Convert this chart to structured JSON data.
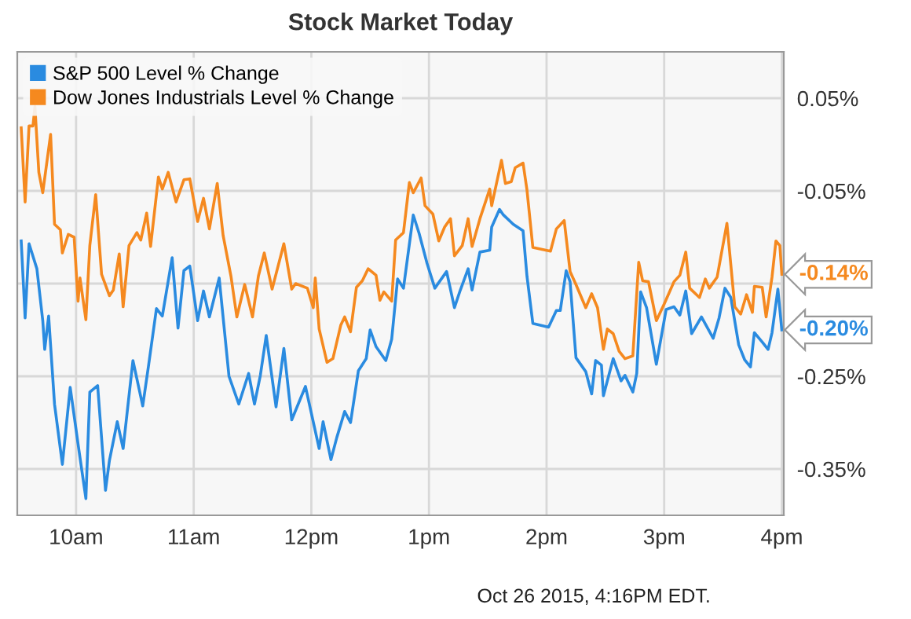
{
  "chart_data": {
    "type": "line",
    "title": "Stock Market Today",
    "xlim": [
      "2015-10-26T09:30",
      "2015-10-26T16:01"
    ],
    "xticks": [
      {
        "value": "2015-10-26T10:00",
        "label": "10am"
      },
      {
        "value": "2015-10-26T11:00",
        "label": "11am"
      },
      {
        "value": "2015-10-26T12:00",
        "label": "12pm"
      },
      {
        "value": "2015-10-26T13:00",
        "label": "1pm"
      },
      {
        "value": "2015-10-26T14:00",
        "label": "2pm"
      },
      {
        "value": "2015-10-26T15:00",
        "label": "3pm"
      },
      {
        "value": "2015-10-26T16:00",
        "label": "4pm"
      }
    ],
    "ylim": [
      -0.4,
      0.1
    ],
    "yticks": [
      {
        "value": 0.05,
        "label": "0.05%"
      },
      {
        "value": -0.05,
        "label": "-0.05%"
      },
      {
        "value": -0.15,
        "label": null
      },
      {
        "value": -0.25,
        "label": "-0.25%"
      },
      {
        "value": -0.35,
        "label": "-0.35%"
      }
    ],
    "grid": true,
    "legend": "top left",
    "series": [
      {
        "name": "S&P 500 Level % Change",
        "color": "#2a8be0",
        "x": [
          "2015-10-26T09:32",
          "2015-10-26T09:34",
          "2015-10-26T09:36",
          "2015-10-26T09:40",
          "2015-10-26T09:43",
          "2015-10-26T09:44",
          "2015-10-26T09:46",
          "2015-10-26T09:49",
          "2015-10-26T09:53",
          "2015-10-26T09:57",
          "2015-10-26T10:01",
          "2015-10-26T10:05",
          "2015-10-26T10:07",
          "2015-10-26T10:11",
          "2015-10-26T10:15",
          "2015-10-26T10:17",
          "2015-10-26T10:21",
          "2015-10-26T10:24",
          "2015-10-26T10:29",
          "2015-10-26T10:34",
          "2015-10-26T10:37",
          "2015-10-26T10:41",
          "2015-10-26T10:44",
          "2015-10-26T10:49",
          "2015-10-26T10:52",
          "2015-10-26T10:55",
          "2015-10-26T10:58",
          "2015-10-26T11:02",
          "2015-10-26T11:05",
          "2015-10-26T11:08",
          "2015-10-26T11:13",
          "2015-10-26T11:18",
          "2015-10-26T11:23",
          "2015-10-26T11:28",
          "2015-10-26T11:31",
          "2015-10-26T11:34",
          "2015-10-26T11:37",
          "2015-10-26T11:42",
          "2015-10-26T11:46",
          "2015-10-26T11:50",
          "2015-10-26T11:57",
          "2015-10-26T12:04",
          "2015-10-26T12:06",
          "2015-10-26T12:10",
          "2015-10-26T12:13",
          "2015-10-26T12:17",
          "2015-10-26T12:20",
          "2015-10-26T12:24",
          "2015-10-26T12:28",
          "2015-10-26T12:30",
          "2015-10-26T12:33",
          "2015-10-26T12:38",
          "2015-10-26T12:41",
          "2015-10-26T12:44",
          "2015-10-26T12:47",
          "2015-10-26T12:52",
          "2015-10-26T12:55",
          "2015-10-26T12:59",
          "2015-10-26T13:03",
          "2015-10-26T13:09",
          "2015-10-26T13:13",
          "2015-10-26T13:16",
          "2015-10-26T13:20",
          "2015-10-26T13:22",
          "2015-10-26T13:26",
          "2015-10-26T13:31",
          "2015-10-26T13:32",
          "2015-10-26T13:36",
          "2015-10-26T13:38",
          "2015-10-26T13:43",
          "2015-10-26T13:48",
          "2015-10-26T13:50",
          "2015-10-26T13:53",
          "2015-10-26T14:01",
          "2015-10-26T14:05",
          "2015-10-26T14:07",
          "2015-10-26T14:10",
          "2015-10-26T14:12",
          "2015-10-26T14:15",
          "2015-10-26T14:20",
          "2015-10-26T14:23",
          "2015-10-26T14:25",
          "2015-10-26T14:28",
          "2015-10-26T14:29",
          "2015-10-26T14:34",
          "2015-10-26T14:38",
          "2015-10-26T14:40",
          "2015-10-26T14:44",
          "2015-10-26T14:46",
          "2015-10-26T14:48",
          "2015-10-26T14:51",
          "2015-10-26T14:56",
          "2015-10-26T15:01",
          "2015-10-26T15:05",
          "2015-10-26T15:08",
          "2015-10-26T15:11",
          "2015-10-26T15:14",
          "2015-10-26T15:19",
          "2015-10-26T15:25",
          "2015-10-26T15:28",
          "2015-10-26T15:31",
          "2015-10-26T15:34",
          "2015-10-26T15:38",
          "2015-10-26T15:41",
          "2015-10-26T15:44",
          "2015-10-26T15:46",
          "2015-10-26T15:50",
          "2015-10-26T15:53",
          "2015-10-26T15:55",
          "2015-10-26T15:58",
          "2015-10-26T16:00"
        ],
        "values": [
          -0.104,
          -0.187,
          -0.107,
          -0.134,
          -0.19,
          -0.221,
          -0.185,
          -0.28,
          -0.345,
          -0.262,
          -0.323,
          -0.382,
          -0.267,
          -0.26,
          -0.373,
          -0.341,
          -0.299,
          -0.328,
          -0.233,
          -0.282,
          -0.238,
          -0.177,
          -0.185,
          -0.122,
          -0.198,
          -0.136,
          -0.131,
          -0.19,
          -0.158,
          -0.186,
          -0.144,
          -0.25,
          -0.28,
          -0.247,
          -0.28,
          -0.249,
          -0.206,
          -0.283,
          -0.22,
          -0.297,
          -0.261,
          -0.328,
          -0.299,
          -0.34,
          -0.316,
          -0.288,
          -0.3,
          -0.244,
          -0.231,
          -0.2,
          -0.218,
          -0.233,
          -0.21,
          -0.145,
          -0.155,
          -0.076,
          -0.096,
          -0.128,
          -0.155,
          -0.137,
          -0.176,
          -0.157,
          -0.134,
          -0.157,
          -0.116,
          -0.114,
          -0.089,
          -0.07,
          -0.076,
          -0.086,
          -0.093,
          -0.142,
          -0.193,
          -0.197,
          -0.179,
          -0.179,
          -0.136,
          -0.148,
          -0.23,
          -0.245,
          -0.269,
          -0.233,
          -0.238,
          -0.271,
          -0.231,
          -0.255,
          -0.249,
          -0.267,
          -0.247,
          -0.159,
          -0.176,
          -0.237,
          -0.178,
          -0.175,
          -0.184,
          -0.158,
          -0.204,
          -0.186,
          -0.209,
          -0.187,
          -0.155,
          -0.165,
          -0.216,
          -0.232,
          -0.24,
          -0.203,
          -0.213,
          -0.221,
          -0.203,
          -0.156,
          -0.2
        ]
      },
      {
        "name": "Dow Jones Industrials Level % Change",
        "color": "#f5891f",
        "x": [
          "2015-10-26T09:32",
          "2015-10-26T09:34",
          "2015-10-26T09:36",
          "2015-10-26T09:38",
          "2015-10-26T09:39",
          "2015-10-26T09:41",
          "2015-10-26T09:43",
          "2015-10-26T09:47",
          "2015-10-26T09:49",
          "2015-10-26T09:52",
          "2015-10-26T09:53",
          "2015-10-26T09:56",
          "2015-10-26T09:59",
          "2015-10-26T10:01",
          "2015-10-26T10:02",
          "2015-10-26T10:05",
          "2015-10-26T10:07",
          "2015-10-26T10:10",
          "2015-10-26T10:13",
          "2015-10-26T10:17",
          "2015-10-26T10:19",
          "2015-10-26T10:22",
          "2015-10-26T10:24",
          "2015-10-26T10:27",
          "2015-10-26T10:31",
          "2015-10-26T10:33",
          "2015-10-26T10:36",
          "2015-10-26T10:38",
          "2015-10-26T10:42",
          "2015-10-26T10:44",
          "2015-10-26T10:47",
          "2015-10-26T10:51",
          "2015-10-26T10:55",
          "2015-10-26T10:58",
          "2015-10-26T11:02",
          "2015-10-26T11:05",
          "2015-10-26T11:08",
          "2015-10-26T11:12",
          "2015-10-26T11:15",
          "2015-10-26T11:19",
          "2015-10-26T11:22",
          "2015-10-26T11:26",
          "2015-10-26T11:30",
          "2015-10-26T11:33",
          "2015-10-26T11:36",
          "2015-10-26T11:40",
          "2015-10-26T11:46",
          "2015-10-26T11:50",
          "2015-10-26T11:52",
          "2015-10-26T11:58",
          "2015-10-26T12:01",
          "2015-10-26T12:02",
          "2015-10-26T12:04",
          "2015-10-26T12:08",
          "2015-10-26T12:11",
          "2015-10-26T12:15",
          "2015-10-26T12:17",
          "2015-10-26T12:20",
          "2015-10-26T12:23",
          "2015-10-26T12:26",
          "2015-10-26T12:29",
          "2015-10-26T12:33",
          "2015-10-26T12:35",
          "2015-10-26T12:37",
          "2015-10-26T12:41",
          "2015-10-26T12:43",
          "2015-10-26T12:47",
          "2015-10-26T12:50",
          "2015-10-26T12:52",
          "2015-10-26T12:56",
          "2015-10-26T12:58",
          "2015-10-26T13:02",
          "2015-10-26T13:05",
          "2015-10-26T13:08",
          "2015-10-26T13:11",
          "2015-10-26T13:13",
          "2015-10-26T13:17",
          "2015-10-26T13:20",
          "2015-10-26T13:22",
          "2015-10-26T13:26",
          "2015-10-26T13:31",
          "2015-10-26T13:32",
          "2015-10-26T13:37",
          "2015-10-26T13:39",
          "2015-10-26T13:42",
          "2015-10-26T13:44",
          "2015-10-26T13:48",
          "2015-10-26T13:50",
          "2015-10-26T13:53",
          "2015-10-26T14:02",
          "2015-10-26T14:05",
          "2015-10-26T14:09",
          "2015-10-26T14:12",
          "2015-10-26T14:15",
          "2015-10-26T14:20",
          "2015-10-26T14:23",
          "2015-10-26T14:26",
          "2015-10-26T14:29",
          "2015-10-26T14:31",
          "2015-10-26T14:34",
          "2015-10-26T14:37",
          "2015-10-26T14:40",
          "2015-10-26T14:44",
          "2015-10-26T14:47",
          "2015-10-26T14:49",
          "2015-10-26T14:52",
          "2015-10-26T14:56",
          "2015-10-26T15:00",
          "2015-10-26T15:05",
          "2015-10-26T15:08",
          "2015-10-26T15:11",
          "2015-10-26T15:13",
          "2015-10-26T15:18",
          "2015-10-26T15:21",
          "2015-10-26T15:23",
          "2015-10-26T15:27",
          "2015-10-26T15:32",
          "2015-10-26T15:36",
          "2015-10-26T15:39",
          "2015-10-26T15:42",
          "2015-10-26T15:45",
          "2015-10-26T15:46",
          "2015-10-26T15:50",
          "2015-10-26T15:52",
          "2015-10-26T15:55",
          "2015-10-26T15:57",
          "2015-10-26T15:59",
          "2015-10-26T16:00"
        ],
        "values": [
          0.018,
          -0.062,
          0.02,
          0.02,
          0.041,
          -0.03,
          -0.052,
          0.011,
          -0.086,
          -0.092,
          -0.117,
          -0.097,
          -0.1,
          -0.169,
          -0.144,
          -0.189,
          -0.109,
          -0.054,
          -0.14,
          -0.163,
          -0.157,
          -0.118,
          -0.175,
          -0.109,
          -0.095,
          -0.103,
          -0.074,
          -0.11,
          -0.035,
          -0.048,
          -0.03,
          -0.062,
          -0.038,
          -0.037,
          -0.083,
          -0.058,
          -0.091,
          -0.042,
          -0.098,
          -0.142,
          -0.186,
          -0.151,
          -0.186,
          -0.142,
          -0.117,
          -0.156,
          -0.107,
          -0.156,
          -0.15,
          -0.155,
          -0.176,
          -0.144,
          -0.199,
          -0.235,
          -0.231,
          -0.195,
          -0.186,
          -0.202,
          -0.154,
          -0.147,
          -0.134,
          -0.141,
          -0.168,
          -0.159,
          -0.169,
          -0.103,
          -0.095,
          -0.041,
          -0.052,
          -0.036,
          -0.066,
          -0.075,
          -0.104,
          -0.089,
          -0.08,
          -0.12,
          -0.109,
          -0.08,
          -0.11,
          -0.08,
          -0.048,
          -0.066,
          -0.017,
          -0.042,
          -0.04,
          -0.025,
          -0.02,
          -0.049,
          -0.111,
          -0.115,
          -0.091,
          -0.082,
          -0.137,
          -0.151,
          -0.176,
          -0.161,
          -0.176,
          -0.221,
          -0.199,
          -0.204,
          -0.223,
          -0.231,
          -0.228,
          -0.127,
          -0.147,
          -0.148,
          -0.19,
          -0.172,
          -0.148,
          -0.141,
          -0.116,
          -0.155,
          -0.165,
          -0.145,
          -0.155,
          -0.143,
          -0.085,
          -0.175,
          -0.183,
          -0.162,
          -0.181,
          -0.153,
          -0.154,
          -0.186,
          -0.143,
          -0.104,
          -0.109,
          -0.14
        ]
      }
    ],
    "annotations": [
      {
        "text": "-0.14%",
        "x": "2015-10-26T16:00",
        "y": -0.14
      },
      {
        "text": "-0.20%",
        "x": "2015-10-26T16:00",
        "y": -0.2
      },
      "Oct 26 2015, 4:16PM EDT."
    ]
  }
}
